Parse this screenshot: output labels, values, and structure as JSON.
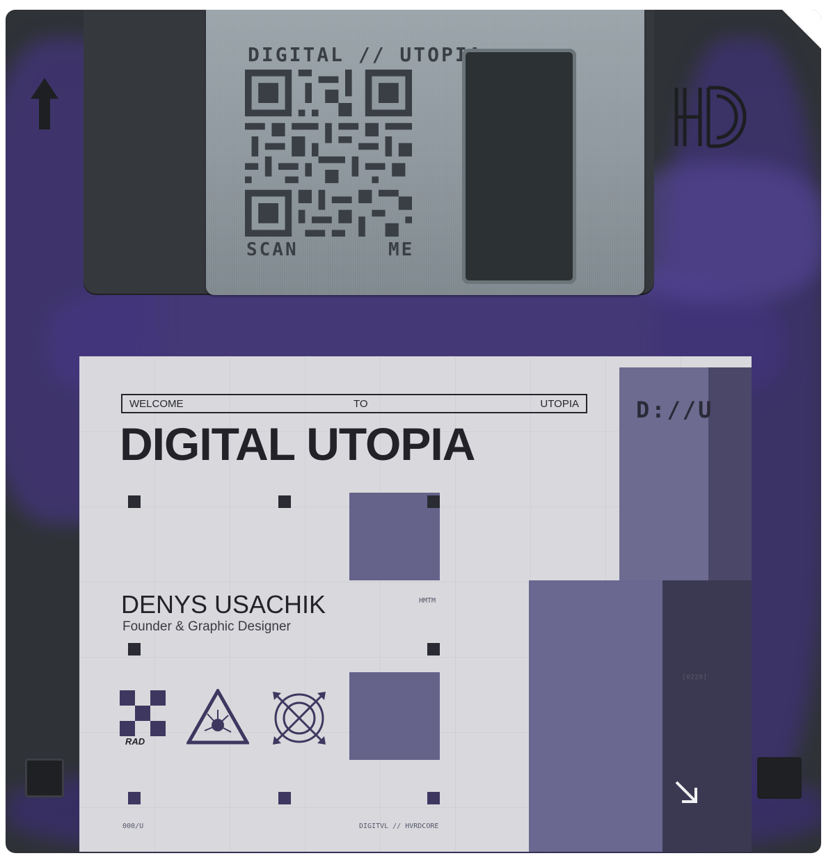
{
  "shutter": {
    "qr_title": "DIGITAL // UTOPIA",
    "scan_label": "SCAN",
    "me_label": "ME"
  },
  "disk": {
    "hd_mark": "HD"
  },
  "label": {
    "welcome_left": "WELCOME",
    "welcome_mid": "TO",
    "welcome_right": "UTOPIA",
    "title": "DIGITAL UTOPIA",
    "du_mark": "D://U",
    "code_hmtm": "HMTM",
    "name": "DENYS USACHIK",
    "role": "Founder & Graphic Designer",
    "rad_label": "RAD",
    "code_0220": "[0220]",
    "footer_left": "000/U",
    "footer_mid": "DIGITVL // HVRDCORE"
  },
  "colors": {
    "disk_body": "#2f3236",
    "paint_purple": "#4b3a8c",
    "shutter_metal": "#8e989e",
    "label_paper": "#d9d9dd",
    "label_violet": "#65638a",
    "ink": "#222228"
  }
}
